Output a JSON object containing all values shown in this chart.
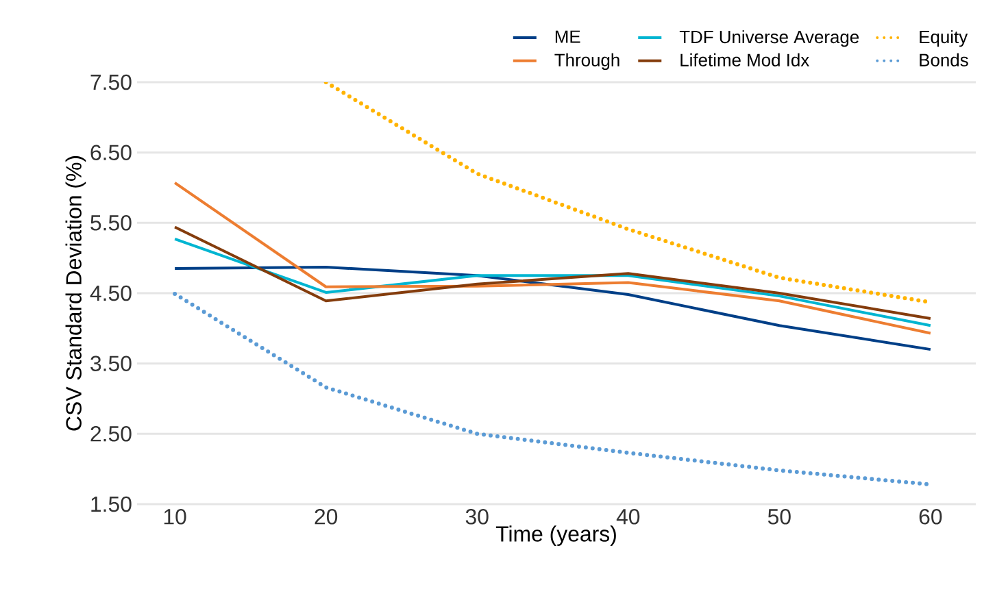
{
  "chart_data": {
    "type": "line",
    "xlabel": "Time (years)",
    "ylabel": "CSV Standard Deviation (%)",
    "x": [
      10,
      20,
      30,
      40,
      50,
      60
    ],
    "xlim": [
      7.5,
      63
    ],
    "xticks": [
      10,
      20,
      30,
      40,
      50,
      60
    ],
    "ylim": [
      1.5,
      7.5
    ],
    "yticks": [
      {
        "value": 1.5,
        "label": "1.50"
      },
      {
        "value": 2.5,
        "label": "2.50"
      },
      {
        "value": 3.5,
        "label": "3.50"
      },
      {
        "value": 4.5,
        "label": "4.50"
      },
      {
        "value": 5.5,
        "label": "5.50"
      },
      {
        "value": 6.5,
        "label": "6.50"
      },
      {
        "value": 7.5,
        "label": "7.50"
      }
    ],
    "grid": "y",
    "legend": "top right",
    "line_style": "solid",
    "series": [
      {
        "name": "ME",
        "color": "#003f87",
        "values": [
          4.85,
          4.87,
          4.75,
          4.48,
          4.04,
          3.7
        ]
      },
      {
        "name": "TDF Universe Average",
        "color": "#00b5d1",
        "values": [
          5.27,
          4.51,
          4.75,
          4.75,
          4.46,
          4.04
        ]
      },
      {
        "name": "Equity",
        "color": "#ffb300",
        "line_style": "dotted",
        "values": [
          null,
          7.5,
          6.2,
          5.41,
          4.72,
          4.37
        ]
      },
      {
        "name": "Through",
        "color": "#ed7d31",
        "values": [
          6.07,
          4.59,
          4.6,
          4.65,
          4.39,
          3.93
        ]
      },
      {
        "name": "Lifetime Mod Idx",
        "color": "#843c0c",
        "values": [
          5.44,
          4.39,
          4.63,
          4.78,
          4.5,
          4.14
        ]
      },
      {
        "name": "Bonds",
        "color": "#5b9bd5",
        "line_style": "dotted",
        "values": [
          4.49,
          3.16,
          2.5,
          2.23,
          1.98,
          1.78
        ]
      }
    ]
  }
}
